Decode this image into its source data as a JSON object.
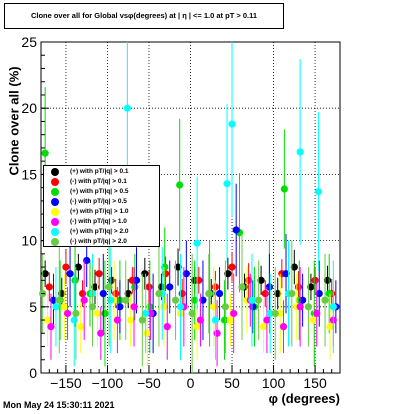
{
  "title": "Clone  over all for Global vsφ(degrees) at | η | <= 1.0 at pT > 0.11",
  "timestamp": "Mon May 24 15:30:11 2021",
  "chart_data": {
    "type": "scatter",
    "title": "Clone  over all for Global vsφ(degrees) at | η | <= 1.0 at pT > 0.11",
    "xlabel": "φ (degrees)",
    "ylabel": "Clone  over all (%)",
    "xlim": [
      -180,
      180
    ],
    "ylim": [
      0,
      25
    ],
    "xticks": [
      -150,
      -100,
      -50,
      0,
      50,
      100,
      150
    ],
    "xtick_labels": [
      "−150",
      "−100",
      "−50",
      "0",
      "50",
      "100",
      "150"
    ],
    "yticks": [
      0,
      5,
      10,
      15,
      20,
      25
    ],
    "ytick_labels": [
      "0",
      "5",
      "10",
      "15",
      "20",
      "25"
    ],
    "grid": true,
    "legend_position": "left",
    "series": [
      {
        "name": "(+) with pT/|q| > 0.1",
        "color": "#000000",
        "x": [
          -175,
          -155,
          -135,
          -115,
          -95,
          -75,
          -55,
          -35,
          -15,
          5,
          25,
          45,
          65,
          85,
          105,
          125,
          145,
          165
        ],
        "y": [
          7.5,
          6.0,
          8.0,
          6.5,
          7.0,
          6.0,
          7.5,
          6.5,
          8.0,
          7.0,
          6.0,
          7.5,
          6.5,
          7.0,
          6.0,
          8.0,
          6.5,
          7.0
        ],
        "err": [
          1.0,
          1.2,
          1.0,
          1.3,
          1.0,
          1.1,
          1.2,
          1.0,
          1.4,
          1.0,
          1.1,
          1.2,
          1.0,
          1.1,
          1.2,
          1.3,
          1.0,
          1.1
        ]
      },
      {
        "name": "(-) with pT/|q| > 0.1",
        "color": "#ff0000",
        "x": [
          -170,
          -150,
          -130,
          -110,
          -90,
          -70,
          -50,
          -30,
          -10,
          10,
          30,
          50,
          70,
          90,
          110,
          130,
          150,
          170
        ],
        "y": [
          6.5,
          8.0,
          6.0,
          7.5,
          6.0,
          7.0,
          6.5,
          7.5,
          6.0,
          7.0,
          6.5,
          8.0,
          7.0,
          6.0,
          7.5,
          6.5,
          7.0,
          6.0
        ],
        "err": [
          1.1,
          1.3,
          1.0,
          1.2,
          1.1,
          1.0,
          1.2,
          1.3,
          1.1,
          1.0,
          1.2,
          1.1,
          1.3,
          1.0,
          1.1,
          1.2,
          1.0,
          1.1
        ]
      },
      {
        "name": "(+) with pT/|q| > 0.5",
        "color": "#00dd00",
        "x": [
          -175,
          -157,
          -139,
          -121,
          -103,
          -85,
          -67,
          -49,
          -31,
          -13,
          5,
          23,
          41,
          59,
          77,
          95,
          113,
          131,
          149,
          167
        ],
        "y": [
          16.6,
          5.5,
          7.0,
          6.0,
          4.5,
          5.5,
          6.5,
          5.0,
          8.0,
          14.2,
          5.5,
          6.0,
          4.0,
          10.6,
          5.0,
          6.5,
          13.9,
          5.5,
          4.5,
          6.0
        ],
        "err": [
          5.0,
          3.0,
          3.5,
          2.5,
          4.0,
          3.0,
          2.5,
          3.5,
          3.0,
          5.0,
          3.0,
          4.0,
          3.0,
          4.5,
          3.0,
          3.5,
          4.5,
          3.0,
          4.0,
          3.0
        ]
      },
      {
        "name": "(-) with pT/|q| > 0.5",
        "color": "#0000ff",
        "x": [
          -165,
          -145,
          -125,
          -105,
          -85,
          -65,
          -45,
          -25,
          -5,
          15,
          35,
          55,
          75,
          95,
          115,
          135,
          155,
          175
        ],
        "y": [
          5.5,
          7.5,
          8.5,
          6.0,
          5.0,
          7.0,
          4.5,
          6.5,
          7.5,
          5.5,
          6.0,
          10.8,
          5.0,
          6.5,
          7.5,
          5.5,
          6.0,
          5.0
        ],
        "err": [
          2.0,
          2.5,
          2.0,
          3.0,
          2.0,
          2.5,
          3.0,
          2.0,
          2.5,
          3.0,
          2.0,
          3.5,
          2.0,
          2.5,
          3.0,
          2.0,
          2.5,
          2.0
        ]
      },
      {
        "name": "(+) with pT/|q| > 1.0",
        "color": "#ffff00",
        "x": [
          -172,
          -152,
          -132,
          -112,
          -92,
          -72,
          -52,
          -32,
          -12,
          8,
          28,
          48,
          68,
          88,
          108,
          128,
          148,
          168
        ],
        "y": [
          4.0,
          5.0,
          3.5,
          4.5,
          5.5,
          4.0,
          3.0,
          5.0,
          4.5,
          3.5,
          5.0,
          4.0,
          5.5,
          3.5,
          4.5,
          5.0,
          4.0,
          3.5
        ],
        "err": [
          2.0,
          2.5,
          2.0,
          2.5,
          3.0,
          2.0,
          2.5,
          3.0,
          2.0,
          2.5,
          3.0,
          2.0,
          2.5,
          2.0,
          3.0,
          2.5,
          2.0,
          2.5
        ]
      },
      {
        "name": "(-) with pT/|q| > 1.0",
        "color": "#ff00ff",
        "x": [
          -168,
          -148,
          -128,
          -108,
          -88,
          -68,
          -48,
          -28,
          -8,
          12,
          32,
          52,
          72,
          92,
          112,
          132,
          152,
          172
        ],
        "y": [
          3.5,
          4.5,
          5.5,
          3.0,
          4.0,
          5.0,
          4.5,
          3.5,
          5.0,
          4.0,
          3.0,
          4.5,
          5.5,
          4.0,
          3.5,
          5.0,
          4.5,
          4.0
        ],
        "err": [
          2.5,
          2.0,
          3.0,
          2.0,
          2.5,
          3.0,
          2.0,
          2.5,
          3.0,
          2.0,
          2.5,
          3.0,
          2.0,
          2.5,
          2.0,
          3.0,
          2.5,
          2.0
        ]
      },
      {
        "name": "(+) with pT/|q| > 2.0",
        "color": "#00ffff",
        "x": [
          -162,
          -140,
          -118,
          -96,
          -76,
          -54,
          -34,
          -12,
          8,
          30,
          44,
          50,
          74,
          96,
          118,
          132,
          154,
          172
        ],
        "y": [
          5.0,
          4.0,
          6.0,
          5.5,
          20.0,
          4.5,
          6.0,
          5.0,
          9.8,
          4.0,
          14.3,
          18.8,
          5.5,
          4.5,
          6.0,
          16.7,
          13.7,
          5.0
        ],
        "err": [
          3.0,
          3.5,
          3.0,
          4.0,
          6.0,
          3.0,
          3.5,
          4.0,
          5.0,
          3.0,
          6.0,
          7.0,
          3.5,
          3.0,
          4.0,
          7.0,
          6.0,
          3.5
        ]
      },
      {
        "name": "(-) with pT/|q| > 2.0",
        "color": "#66cc44",
        "x": [
          -178,
          -158,
          -138,
          -118,
          -98,
          -78,
          -58,
          -38,
          -18,
          2,
          22,
          42,
          62,
          82,
          102,
          122,
          142,
          162
        ],
        "y": [
          6.0,
          5.5,
          4.5,
          5.0,
          6.5,
          5.5,
          4.0,
          6.0,
          5.5,
          4.5,
          6.0,
          5.0,
          6.5,
          5.5,
          4.5,
          6.0,
          5.0,
          5.5
        ],
        "err": [
          3.0,
          4.0,
          3.5,
          3.0,
          4.5,
          3.0,
          3.5,
          4.0,
          3.0,
          4.5,
          3.0,
          3.5,
          4.0,
          3.0,
          3.5,
          4.0,
          3.0,
          3.5
        ]
      }
    ]
  }
}
